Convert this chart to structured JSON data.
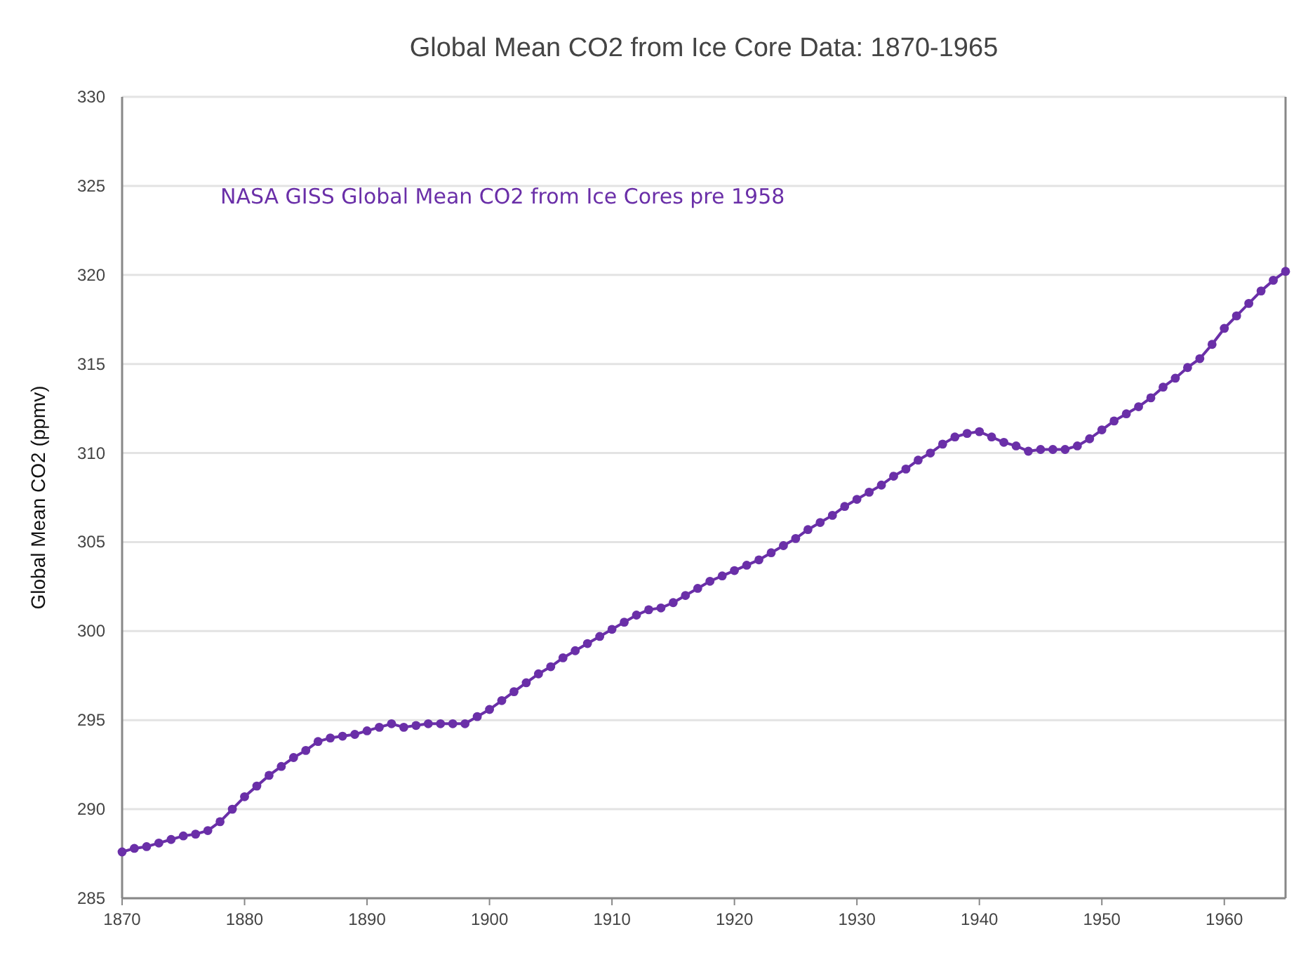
{
  "chart_data": {
    "type": "line",
    "title": "Global Mean CO2 from Ice Core Data: 1870-1965",
    "ylabel": "Global Mean CO2 (ppmv)",
    "x": [
      1870,
      1871,
      1872,
      1873,
      1874,
      1875,
      1876,
      1877,
      1878,
      1879,
      1880,
      1881,
      1882,
      1883,
      1884,
      1885,
      1886,
      1887,
      1888,
      1889,
      1890,
      1891,
      1892,
      1893,
      1894,
      1895,
      1896,
      1897,
      1898,
      1899,
      1900,
      1901,
      1902,
      1903,
      1904,
      1905,
      1906,
      1907,
      1908,
      1909,
      1910,
      1911,
      1912,
      1913,
      1914,
      1915,
      1916,
      1917,
      1918,
      1919,
      1920,
      1921,
      1922,
      1923,
      1924,
      1925,
      1926,
      1927,
      1928,
      1929,
      1930,
      1931,
      1932,
      1933,
      1934,
      1935,
      1936,
      1937,
      1938,
      1939,
      1940,
      1941,
      1942,
      1943,
      1944,
      1945,
      1946,
      1947,
      1948,
      1949,
      1950,
      1951,
      1952,
      1953,
      1954,
      1955,
      1956,
      1957,
      1958,
      1959,
      1960,
      1961,
      1962,
      1963,
      1964,
      1965
    ],
    "series": [
      {
        "name": "NASA GISS Global Mean CO2 from Ice Cores pre 1958",
        "color": "#6a2fa8",
        "values": [
          287.6,
          287.8,
          287.9,
          288.1,
          288.3,
          288.5,
          288.6,
          288.8,
          289.3,
          290.0,
          290.7,
          291.3,
          291.9,
          292.4,
          292.9,
          293.3,
          293.8,
          294.0,
          294.1,
          294.2,
          294.4,
          294.6,
          294.8,
          294.6,
          294.7,
          294.8,
          294.8,
          294.8,
          294.8,
          295.2,
          295.6,
          296.1,
          296.6,
          297.1,
          297.6,
          298.0,
          298.5,
          298.9,
          299.3,
          299.7,
          300.1,
          300.5,
          300.9,
          301.2,
          301.3,
          301.6,
          302.0,
          302.4,
          302.8,
          303.1,
          303.4,
          303.7,
          304.0,
          304.4,
          304.8,
          305.2,
          305.7,
          306.1,
          306.5,
          307.0,
          307.4,
          307.8,
          308.2,
          308.7,
          309.1,
          309.6,
          310.0,
          310.5,
          310.9,
          311.1,
          311.2,
          310.9,
          310.6,
          310.4,
          310.1,
          310.2,
          310.2,
          310.2,
          310.4,
          310.8,
          311.3,
          311.8,
          312.2,
          312.6,
          313.1,
          313.7,
          314.2,
          314.8,
          315.3,
          316.1,
          317.0,
          317.7,
          318.4,
          319.1,
          319.7,
          320.2
        ]
      }
    ],
    "xlim": [
      1870,
      1965
    ],
    "xticks": [
      1870,
      1880,
      1890,
      1900,
      1910,
      1920,
      1930,
      1940,
      1950,
      1960
    ],
    "ylim": [
      285,
      330
    ],
    "yticks": [
      285,
      290,
      295,
      300,
      305,
      310,
      315,
      320,
      325,
      330
    ],
    "grid": "y",
    "marker": "circle",
    "line_style": "solid"
  }
}
